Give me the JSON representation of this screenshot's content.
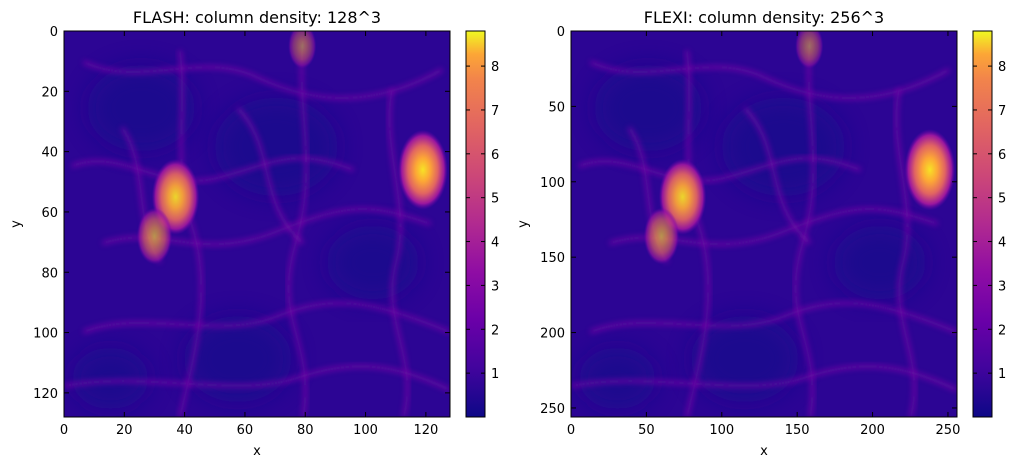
{
  "chart_data": [
    {
      "type": "heatmap",
      "title": "FLASH: column density: 128^3",
      "xlabel": "x",
      "ylabel": "y",
      "xlim": [
        0,
        128
      ],
      "ylim": [
        128,
        0
      ],
      "xticks": [
        0,
        20,
        40,
        60,
        80,
        100,
        120
      ],
      "yticks": [
        0,
        20,
        40,
        60,
        80,
        100,
        120
      ],
      "colormap": "plasma",
      "colorbar_range": [
        0,
        8.8
      ],
      "colorbar_ticks": [
        1,
        2,
        3,
        4,
        5,
        6,
        7,
        8
      ],
      "hotspots": [
        {
          "x": 37,
          "y": 55,
          "value": 8.0
        },
        {
          "x": 30,
          "y": 68,
          "value": 5.5
        },
        {
          "x": 119,
          "y": 46,
          "value": 8.5
        },
        {
          "x": 79,
          "y": 5,
          "value": 4.0
        }
      ]
    },
    {
      "type": "heatmap",
      "title": "FLEXI: column density: 256^3",
      "xlabel": "x",
      "ylabel": "y",
      "xlim": [
        0,
        256
      ],
      "ylim": [
        256,
        0
      ],
      "xticks": [
        0,
        50,
        100,
        150,
        200,
        250
      ],
      "yticks": [
        0,
        50,
        100,
        150,
        200,
        250
      ],
      "colormap": "plasma",
      "colorbar_range": [
        0,
        8.8
      ],
      "colorbar_ticks": [
        1,
        2,
        3,
        4,
        5,
        6,
        7,
        8
      ],
      "hotspots": [
        {
          "x": 74,
          "y": 110,
          "value": 8.0
        },
        {
          "x": 60,
          "y": 136,
          "value": 5.5
        },
        {
          "x": 238,
          "y": 92,
          "value": 8.7
        },
        {
          "x": 158,
          "y": 10,
          "value": 4.0
        }
      ]
    }
  ]
}
